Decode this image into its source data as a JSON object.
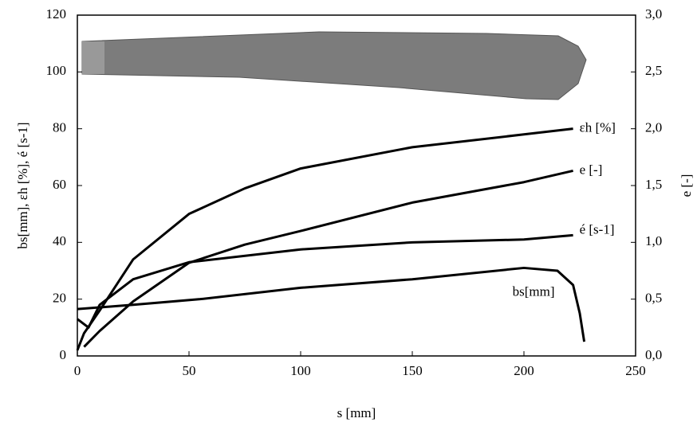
{
  "chart_data": {
    "type": "line",
    "xlabel": "s [mm]",
    "ylabel": "bs[mm], εh [%], é [s-1]",
    "y2label": "e [-]",
    "xlim": [
      0,
      250
    ],
    "xticks": [
      0,
      50,
      100,
      150,
      200,
      250
    ],
    "ylim": [
      0,
      120
    ],
    "yticks": [
      0,
      20,
      40,
      60,
      80,
      100,
      120
    ],
    "y2lim": [
      0,
      3
    ],
    "y2ticks": [
      {
        "value": 0,
        "label": "0,0"
      },
      {
        "value": 0.5,
        "label": "0,5"
      },
      {
        "value": 1,
        "label": "1,0"
      },
      {
        "value": 1.5,
        "label": "1,5"
      },
      {
        "value": 2,
        "label": "2,0"
      },
      {
        "value": 2.5,
        "label": "2,5"
      },
      {
        "value": 3,
        "label": "3,0"
      }
    ],
    "series": [
      {
        "name": "εh [%]",
        "color": "#000000",
        "x": [
          0,
          3,
          10,
          25,
          50,
          75,
          100,
          150,
          200,
          222
        ],
        "values": [
          2,
          8,
          16,
          34,
          50,
          59,
          66,
          73.5,
          78,
          80
        ]
      },
      {
        "name": "e [-]",
        "color": "#000000",
        "axis": "y2",
        "x": [
          3,
          10,
          25,
          50,
          75,
          100,
          150,
          200,
          222
        ],
        "values": [
          0.08,
          0.22,
          0.48,
          0.82,
          0.98,
          1.1,
          1.35,
          1.53,
          1.63
        ]
      },
      {
        "name": "é [s-1]",
        "color": "#000000",
        "x": [
          0,
          5,
          10,
          25,
          50,
          100,
          150,
          200,
          222
        ],
        "values": [
          13,
          10,
          18,
          27,
          33,
          37.5,
          40,
          41,
          42.5
        ]
      },
      {
        "name": "bs[mm]",
        "color": "#000000",
        "x": [
          0,
          25,
          55,
          100,
          150,
          200,
          215,
          222,
          225,
          227
        ],
        "values": [
          16.5,
          18,
          20,
          24,
          27,
          31,
          30,
          25,
          15,
          5
        ]
      }
    ]
  }
}
